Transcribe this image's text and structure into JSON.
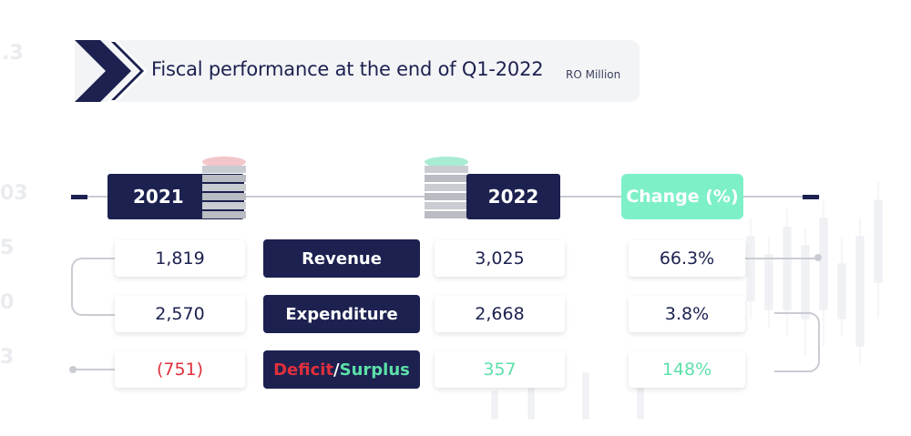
{
  "header": {
    "title": "Fiscal performance at the end of Q1-2022",
    "unit": "RO Million"
  },
  "columns": {
    "year_a": "2021",
    "year_b": "2022",
    "change": "Change (%)"
  },
  "rows": [
    {
      "label": "Revenue",
      "v2021": "1,819",
      "v2022": "3,025",
      "change": "66.3%"
    },
    {
      "label": "Expenditure",
      "v2021": "2,570",
      "v2022": "2,668",
      "change": "3.8%"
    },
    {
      "label_deficit": "Deficit",
      "label_sep": "/",
      "label_surplus": "Surplus",
      "v2021": "(751)",
      "v2022": "357",
      "change": "148%"
    }
  ],
  "colors": {
    "navy": "#1c2150",
    "mint": "#7ef0c8",
    "red": "#e0303b",
    "green": "#5ce0a8"
  },
  "icons": [
    "coin-stack-icon-pink",
    "coin-stack-icon-green"
  ]
}
